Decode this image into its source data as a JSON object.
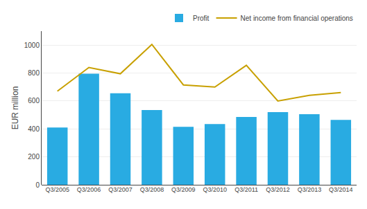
{
  "chart_data": {
    "type": "bar",
    "ylabel": "EUR million",
    "categories": [
      "Q3/2005",
      "Q3/2006",
      "Q3/2007",
      "Q3/2008",
      "Q3/2009",
      "Q3/2010",
      "Q3/2011",
      "Q3/2012",
      "Q3/2013",
      "Q3/2014"
    ],
    "series": [
      {
        "name": "Profit",
        "type": "bar",
        "color": "#29ABE2",
        "values": [
          410,
          795,
          655,
          535,
          415,
          435,
          485,
          520,
          505,
          465
        ]
      },
      {
        "name": "Net income from financial operations",
        "type": "line",
        "color": "#C8A000",
        "values": [
          670,
          840,
          795,
          1005,
          715,
          700,
          855,
          600,
          640,
          660
        ]
      }
    ],
    "ylim": [
      0,
      1100
    ],
    "yticks": [
      0,
      200,
      400,
      600,
      800,
      1000
    ],
    "grid": true,
    "legend": "upper right"
  }
}
